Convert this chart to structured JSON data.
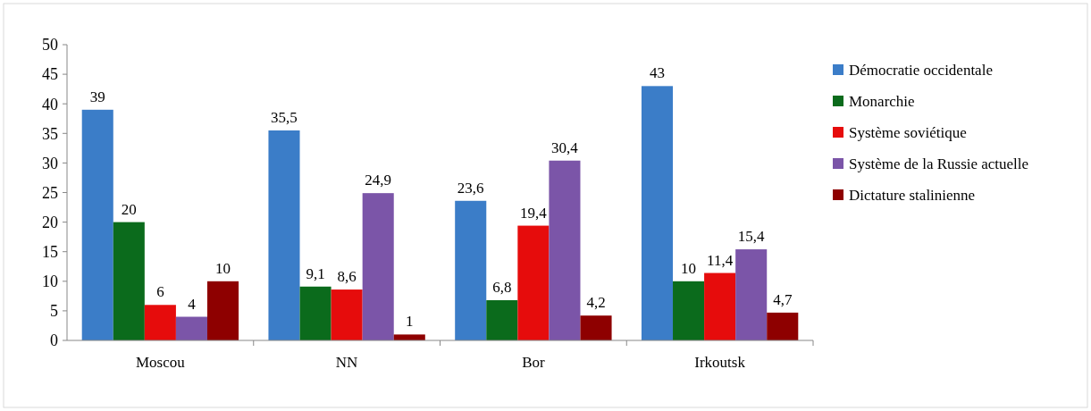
{
  "chart_data": {
    "type": "bar",
    "categories": [
      "Moscou",
      "NN",
      "Bor",
      "Irkoutsk"
    ],
    "series": [
      {
        "name": "Démocratie occidentale",
        "color": "#3b7dc8",
        "values": [
          39,
          35.5,
          23.6,
          43
        ],
        "value_labels": [
          "39",
          "35,5",
          "23,6",
          "43"
        ]
      },
      {
        "name": "Monarchie",
        "color": "#0b6b1c",
        "values": [
          20,
          9.1,
          6.8,
          10
        ],
        "value_labels": [
          "20",
          "9,1",
          "6,8",
          "10"
        ]
      },
      {
        "name": "Système soviétique",
        "color": "#e60c0c",
        "values": [
          6,
          8.6,
          19.4,
          11.4
        ],
        "value_labels": [
          "6",
          "8,6",
          "19,4",
          "11,4"
        ]
      },
      {
        "name": "Système de la Russie actuelle",
        "color": "#7b55a8",
        "values": [
          4,
          24.9,
          30.4,
          15.4
        ],
        "value_labels": [
          "4",
          "24,9",
          "30,4",
          "15,4"
        ]
      },
      {
        "name": "Dictature stalinienne",
        "color": "#8e0000",
        "values": [
          10,
          1,
          4.2,
          4.7
        ],
        "value_labels": [
          "10",
          "1",
          "4,2",
          "4,7"
        ]
      }
    ],
    "ylim": [
      0,
      50
    ],
    "yticks": [
      0,
      5,
      10,
      15,
      20,
      25,
      30,
      35,
      40,
      45,
      50
    ],
    "grid": false,
    "legend": "right"
  }
}
